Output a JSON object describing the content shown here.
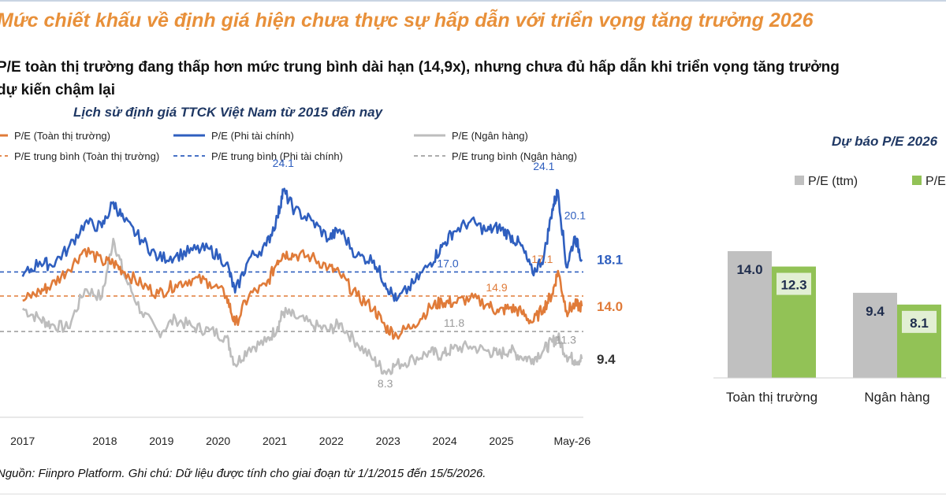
{
  "headline": "Mức chiết khấu về định giá hiện chưa thực sự hấp dẫn với triển vọng tăng trưởng 2026",
  "subheadline_1": "P/E toàn thị trường đang thấp hơn mức trung bình dài hạn (14,9x), nhưng chưa đủ hấp dẫn khi triển vọng tăng trưởng",
  "subheadline_2": "dự kiến chậm lại",
  "footnote": "Nguồn: Fiinpro Platform. Ghi chú: Dữ liệu được tính cho giai đoạn từ 1/1/2015 đến 15/5/2026.",
  "colors": {
    "blue": "#2f5fbf",
    "orange": "#e07b39",
    "gray": "#bdbdbd",
    "green": "#92c256",
    "bar_gray": "#c0c0c0"
  },
  "chart_data": [
    {
      "type": "line",
      "title": "Lịch sử định giá TTCK Việt Nam từ 2015 đến nay",
      "x_ticks": [
        "2017",
        "2018",
        "2019",
        "2020",
        "2021",
        "2022",
        "2023",
        "2024",
        "2025",
        "May-26"
      ],
      "ylim": [
        5,
        27
      ],
      "legend": [
        "P/E (Toàn thị trường)",
        "P/E (Phi tài chính)",
        "P/E (Ngân hàng)",
        "P/E trung bình (Toàn thị trường)",
        "P/E trung bình (Phi tài chính)",
        "P/E trung bình (Ngân hàng)"
      ],
      "averages": [
        {
          "series": "Phi tài chính",
          "value": 17.0,
          "label": "17.0"
        },
        {
          "series": "Toàn thị trường",
          "value": 14.9,
          "label": "14.9"
        },
        {
          "series": "Ngân hàng",
          "value": 11.8,
          "label": "11.8"
        }
      ],
      "series": [
        {
          "name": "P/E (Phi tài chính)",
          "color": "#2f5fbf",
          "x": [
            2016.5,
            2016.8,
            2017.0,
            2017.3,
            2017.6,
            2017.9,
            2018.1,
            2018.3,
            2018.6,
            2018.9,
            2019.2,
            2019.5,
            2019.8,
            2020.1,
            2020.25,
            2020.5,
            2020.8,
            2021.0,
            2021.1,
            2021.3,
            2021.6,
            2021.9,
            2022.1,
            2022.4,
            2022.7,
            2022.9,
            2023.1,
            2023.4,
            2023.7,
            2023.9,
            2024.1,
            2024.4,
            2024.7,
            2024.9,
            2025.1,
            2025.3,
            2025.5,
            2025.7,
            2025.85,
            2025.95,
            2026.1,
            2026.25,
            2026.37
          ],
          "values": [
            16.6,
            17.9,
            17.6,
            19.0,
            21.3,
            20.9,
            23.1,
            21.4,
            19.8,
            18.2,
            18.4,
            18.9,
            19.0,
            17.8,
            15.2,
            18.2,
            19.3,
            21.8,
            24.1,
            22.4,
            21.5,
            19.9,
            20.7,
            18.4,
            18.0,
            16.0,
            14.5,
            16.0,
            17.8,
            19.2,
            20.5,
            21.4,
            20.6,
            20.9,
            20.2,
            19.3,
            16.9,
            18.3,
            22.5,
            24.1,
            17.4,
            20.1,
            18.1
          ]
        },
        {
          "name": "P/E (Toàn thị trường)",
          "color": "#e07b39",
          "x": [
            2016.5,
            2016.8,
            2017.0,
            2017.3,
            2017.6,
            2017.9,
            2018.1,
            2018.3,
            2018.6,
            2018.9,
            2019.2,
            2019.5,
            2019.8,
            2020.1,
            2020.25,
            2020.5,
            2020.8,
            2021.0,
            2021.1,
            2021.3,
            2021.6,
            2021.9,
            2022.1,
            2022.4,
            2022.7,
            2022.9,
            2023.1,
            2023.4,
            2023.7,
            2023.9,
            2024.1,
            2024.4,
            2024.7,
            2024.9,
            2025.1,
            2025.3,
            2025.5,
            2025.7,
            2025.85,
            2025.95,
            2026.1,
            2026.25,
            2026.37
          ],
          "values": [
            14.5,
            15.3,
            15.8,
            17.2,
            19.0,
            17.9,
            17.8,
            17.0,
            15.9,
            15.1,
            15.9,
            16.4,
            16.1,
            14.9,
            12.4,
            15.0,
            15.8,
            18.0,
            18.6,
            18.5,
            18.3,
            17.4,
            16.8,
            14.9,
            13.8,
            12.2,
            11.5,
            12.4,
            13.9,
            14.4,
            14.3,
            14.7,
            14.2,
            13.5,
            13.9,
            13.5,
            12.6,
            13.9,
            15.1,
            17.1,
            13.6,
            14.1,
            14.0
          ]
        },
        {
          "name": "P/E (Ngân hàng)",
          "color": "#bdbdbd",
          "x": [
            2016.5,
            2016.8,
            2017.0,
            2017.3,
            2017.6,
            2017.9,
            2018.1,
            2018.3,
            2018.6,
            2018.9,
            2019.2,
            2019.5,
            2019.8,
            2020.1,
            2020.25,
            2020.5,
            2020.8,
            2021.0,
            2021.1,
            2021.3,
            2021.6,
            2021.9,
            2022.1,
            2022.4,
            2022.7,
            2022.9,
            2023.1,
            2023.4,
            2023.7,
            2023.9,
            2024.1,
            2024.4,
            2024.7,
            2024.9,
            2025.1,
            2025.3,
            2025.5,
            2025.7,
            2025.85,
            2025.95,
            2026.1,
            2026.25,
            2026.37
          ],
          "values": [
            13.8,
            12.9,
            12.4,
            12.1,
            15.5,
            14.8,
            19.9,
            16.6,
            13.5,
            11.7,
            12.9,
            12.2,
            11.9,
            11.3,
            8.9,
            10.4,
            10.9,
            12.2,
            13.5,
            13.1,
            12.4,
            11.9,
            12.5,
            10.8,
            9.3,
            8.3,
            8.9,
            9.4,
            10.0,
            9.7,
            10.3,
            10.5,
            10.1,
            9.8,
            10.2,
            9.6,
            9.4,
            10.2,
            10.9,
            11.3,
            9.7,
            9.3,
            9.4
          ]
        }
      ],
      "value_labels": [
        {
          "text": "24.1",
          "series": "Phi tài chính",
          "x": 2021.1,
          "y": 24.1
        },
        {
          "text": "24.1",
          "series": "Phi tài chính",
          "x": 2025.95,
          "y": 24.1
        },
        {
          "text": "20.1",
          "series": "Phi tài chính",
          "x": 2026.25,
          "y": 20.1
        },
        {
          "text": "17.1",
          "series": "Toàn thị trường",
          "x": 2025.95,
          "y": 17.1
        },
        {
          "text": "11.3",
          "series": "Ngân hàng",
          "x": 2025.95,
          "y": 11.3
        },
        {
          "text": "8.3",
          "series": "Ngân hàng",
          "x": 2022.9,
          "y": 8.3
        }
      ],
      "end_labels": [
        {
          "text": "18.1",
          "series": "Phi tài chính",
          "y": 18.1
        },
        {
          "text": "14.0",
          "series": "Toàn thị trường",
          "y": 14.0
        },
        {
          "text": "9.4",
          "series": "Ngân hàng",
          "y": 9.4
        }
      ]
    },
    {
      "type": "bar",
      "title": "Dự báo P/E 2026",
      "categories": [
        "Toàn thị trường",
        "Ngân hàng"
      ],
      "legend": [
        "P/E (ttm)",
        "P/E"
      ],
      "series": [
        {
          "name": "P/E (ttm)",
          "values": [
            14.0,
            9.4
          ],
          "labels": [
            "14.0",
            "9.4"
          ]
        },
        {
          "name": "P/E",
          "values": [
            12.3,
            8.1
          ],
          "labels": [
            "12.3",
            "8.1"
          ]
        }
      ],
      "ylim": [
        0,
        20
      ]
    }
  ]
}
